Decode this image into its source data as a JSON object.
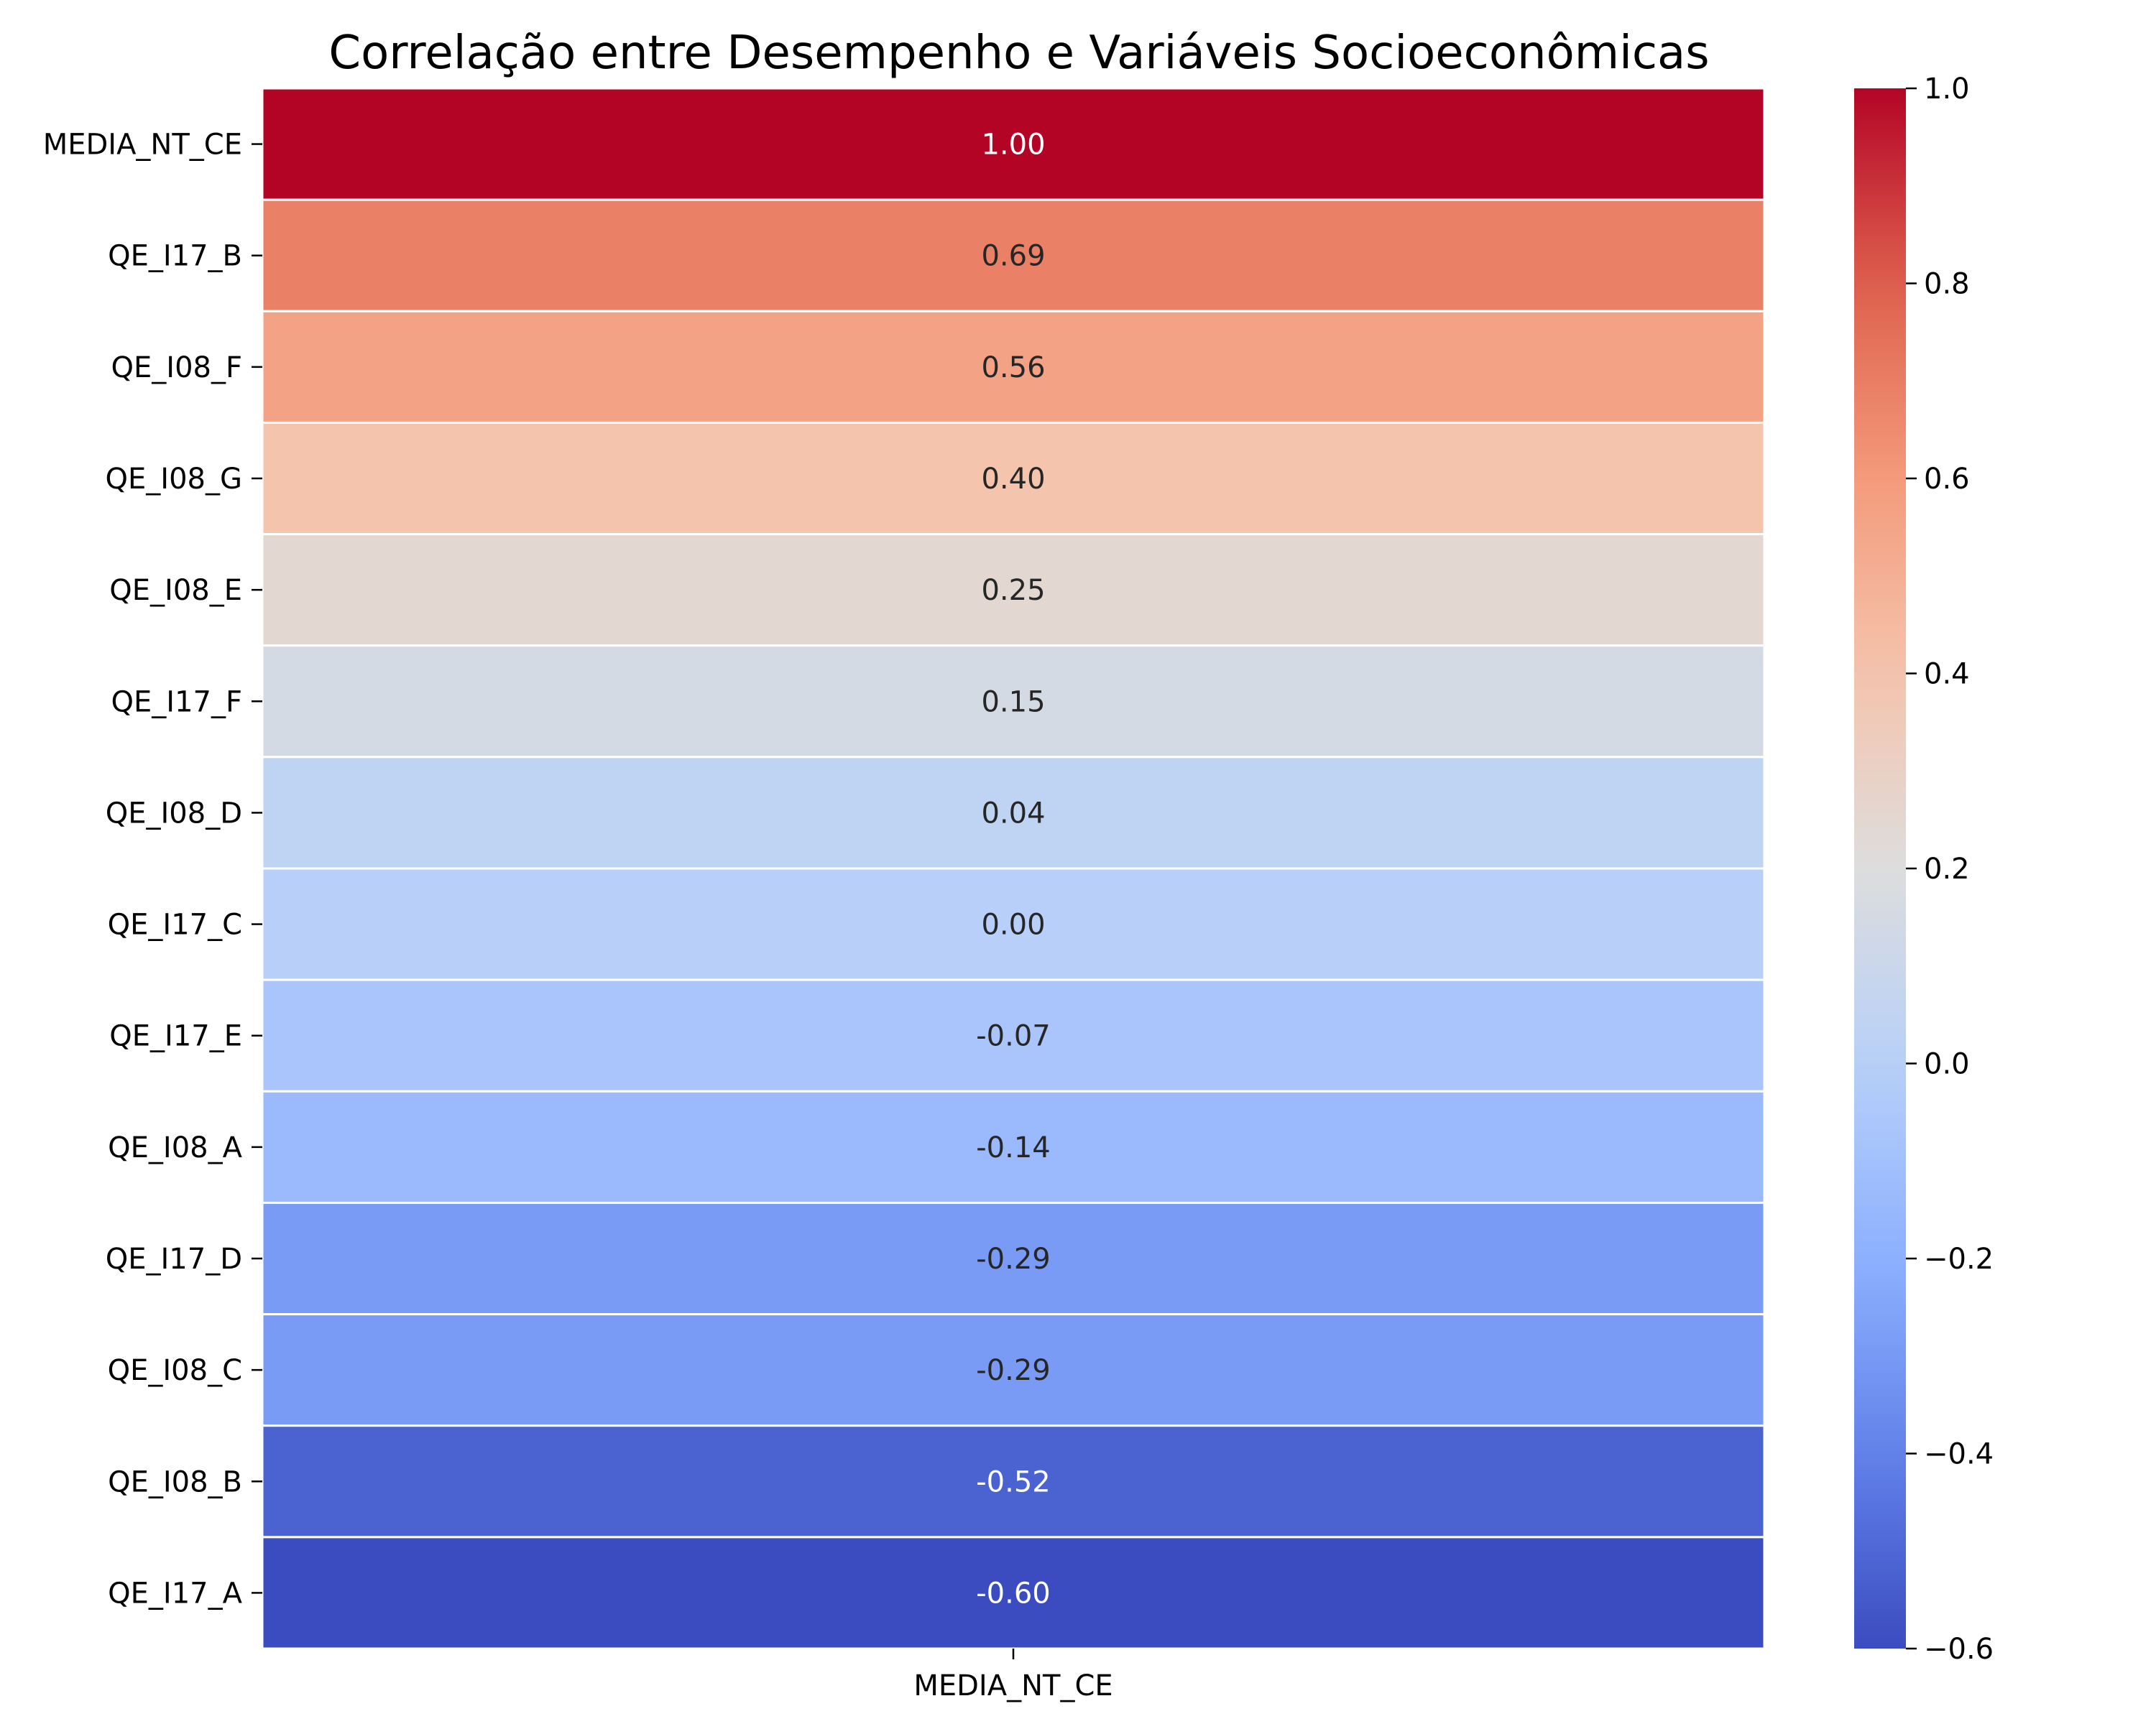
{
  "chart_data": {
    "type": "heatmap",
    "title": "Correlação entre Desempenho e Variáveis Socioeconômicas",
    "columns": [
      "MEDIA_NT_CE"
    ],
    "rows": [
      "MEDIA_NT_CE",
      "QE_I17_B",
      "QE_I08_F",
      "QE_I08_G",
      "QE_I08_E",
      "QE_I17_F",
      "QE_I08_D",
      "QE_I17_C",
      "QE_I17_E",
      "QE_I08_A",
      "QE_I17_D",
      "QE_I08_C",
      "QE_I08_B",
      "QE_I17_A"
    ],
    "values": [
      1.0,
      0.69,
      0.56,
      0.4,
      0.25,
      0.15,
      0.04,
      0.0,
      -0.07,
      -0.14,
      -0.29,
      -0.29,
      -0.52,
      -0.6
    ],
    "value_labels": [
      "1.00",
      "0.69",
      "0.56",
      "0.40",
      "0.25",
      "0.15",
      "0.04",
      "0.00",
      "-0.07",
      "-0.14",
      "-0.29",
      "-0.29",
      "-0.52",
      "-0.60"
    ],
    "colormap": "coolwarm",
    "colorbar": {
      "vmin": -0.6,
      "vmax": 1.0,
      "ticks": [
        -0.6,
        -0.4,
        -0.2,
        0.0,
        0.2,
        0.4,
        0.6,
        0.8,
        1.0
      ],
      "tick_labels": [
        "−0.6",
        "−0.4",
        "−0.2",
        "0.0",
        "0.2",
        "0.4",
        "0.6",
        "0.8",
        "1.0"
      ]
    }
  }
}
